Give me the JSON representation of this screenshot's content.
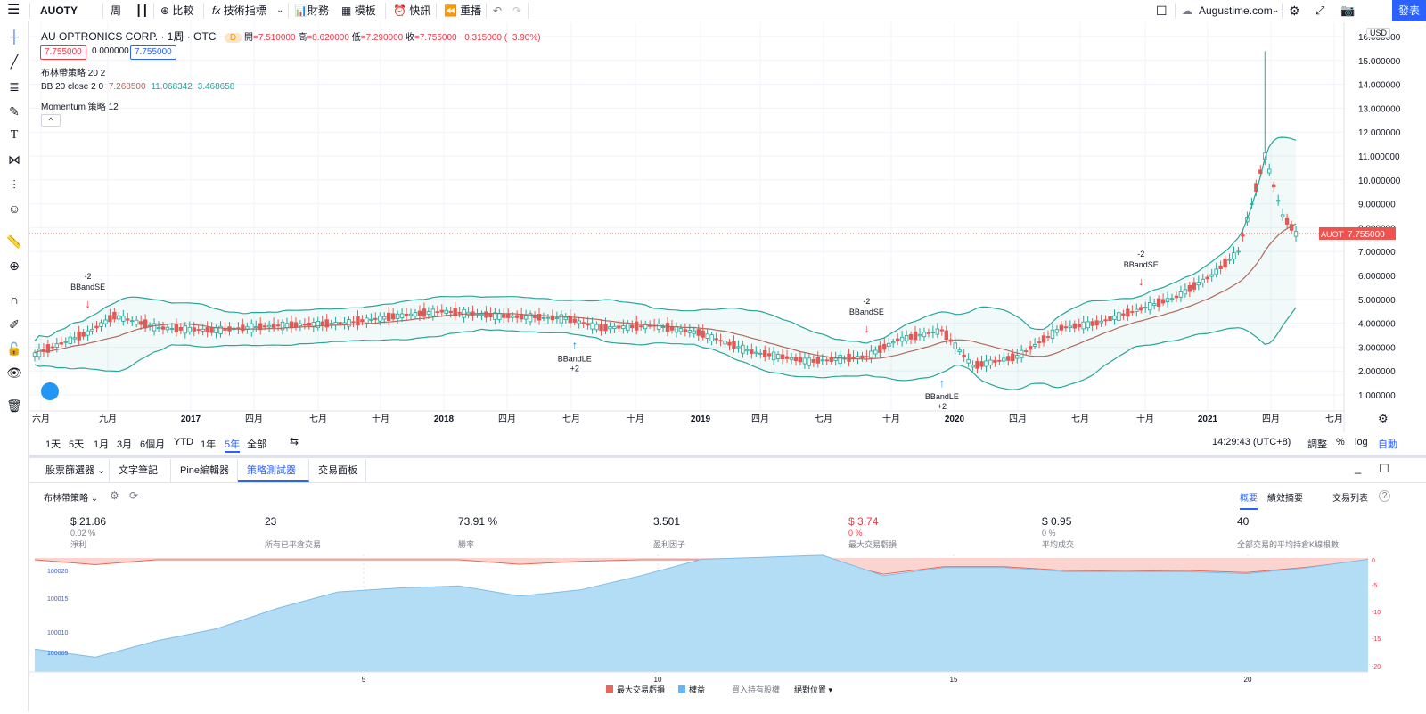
{
  "toolbar": {
    "symbol": "AUOTY",
    "interval": "周",
    "compare": "比較",
    "indicators": "技術指標",
    "financials": "財務",
    "templates": "模板",
    "alert": "快訊",
    "replay": "重播",
    "site": "Augustime.com",
    "publish": "發表"
  },
  "legend": {
    "title": "AU OPTRONICS CORP. · 1周 · OTC",
    "badge": "D",
    "open_label": "開",
    "open": "=7.510000",
    "high_label": "高",
    "high": "=8.620000",
    "low_label": "低",
    "low": "=7.290000",
    "close_label": "收",
    "close": "=7.755000",
    "change": "−0.315000 (−3.90%)",
    "bid": "7.755000",
    "spread": "0.000000",
    "ask": "7.755000",
    "study1": "布林帶策略 20 2",
    "study2_name": "BB 20 close 2 0",
    "study2_v1": "7.268500",
    "study2_v2": "11.068342",
    "study2_v3": "3.468658",
    "study3": "Momentum 策略 12"
  },
  "price_axis": {
    "currency": "USD",
    "ticks": [
      "16.000000",
      "15.000000",
      "14.000000",
      "13.000000",
      "12.000000",
      "11.000000",
      "10.000000",
      "9.000000",
      "8.000000",
      "7.000000",
      "6.000000",
      "5.000000",
      "4.000000",
      "3.000000",
      "2.000000",
      "1.000000"
    ],
    "last_label": "AUOTY",
    "last_value": "7.755000"
  },
  "time_axis": {
    "ticks": [
      "六月",
      "九月",
      "2017",
      "四月",
      "七月",
      "十月",
      "2018",
      "四月",
      "七月",
      "十月",
      "2019",
      "四月",
      "七月",
      "十月",
      "2020",
      "四月",
      "七月",
      "十月",
      "2021",
      "四月",
      "七月"
    ]
  },
  "signals": [
    {
      "label": "-2",
      "name": "BBandSE"
    },
    {
      "label": "BBandLE",
      "name": "+2"
    },
    {
      "label": "-2",
      "name": "BBandSE"
    },
    {
      "label": "BBandLE",
      "name": "+2"
    },
    {
      "label": "-2",
      "name": "BBandSE"
    }
  ],
  "bottombar": {
    "ranges": [
      "1天",
      "5天",
      "1月",
      "3月",
      "6個月",
      "YTD",
      "1年",
      "5年",
      "全部"
    ],
    "active_range": "5年",
    "clock": "14:29:43 (UTC+8)",
    "adjust": "調整",
    "percent": "%",
    "log": "log",
    "auto": "自動"
  },
  "panel_tabs": [
    "股票篩選器",
    "文字筆記",
    "Pine編輯器",
    "策略測試器",
    "交易面板"
  ],
  "active_tab": "策略測試器",
  "strategy": {
    "name": "布林帶策略",
    "views": [
      "概要",
      "績效摘要",
      "交易列表"
    ],
    "active_view": "概要"
  },
  "stats": [
    {
      "value": "$ 21.86",
      "pct": "0.02 %",
      "label": "淨利"
    },
    {
      "value": "23",
      "pct": "",
      "label": "所有已平倉交易"
    },
    {
      "value": "73.91 %",
      "pct": "",
      "label": "勝率"
    },
    {
      "value": "3.501",
      "pct": "",
      "label": "盈利因子"
    },
    {
      "value": "$ 3.74",
      "pct": "0 %",
      "label": "最大交易虧損"
    },
    {
      "value": "$ 0.95",
      "pct": "0 %",
      "label": "平均成交"
    },
    {
      "value": "40",
      "pct": "",
      "label": "全部交易的平均持倉K線根數"
    }
  ],
  "equity": {
    "left_ticks": [
      "100020",
      "100015",
      "100010",
      "100005"
    ],
    "right_ticks": [
      "0",
      "-5",
      "-10",
      "-15",
      "-20"
    ],
    "x_ticks": [
      "5",
      "10",
      "15",
      "20"
    ],
    "legend": [
      "最大交易虧損",
      "權益",
      "買入持有股權",
      "絕對位置"
    ],
    "colors": {
      "equity": "#b3dcf5",
      "equity_line": "#7fbde6",
      "drawdown": "#fbd4d0",
      "drawdown_line": "#e8675c"
    }
  },
  "colors": {
    "up": "#26a69a",
    "down": "#ef5350",
    "accent": "#2962ff",
    "band": "#26a69a",
    "basis": "#b2695c"
  }
}
